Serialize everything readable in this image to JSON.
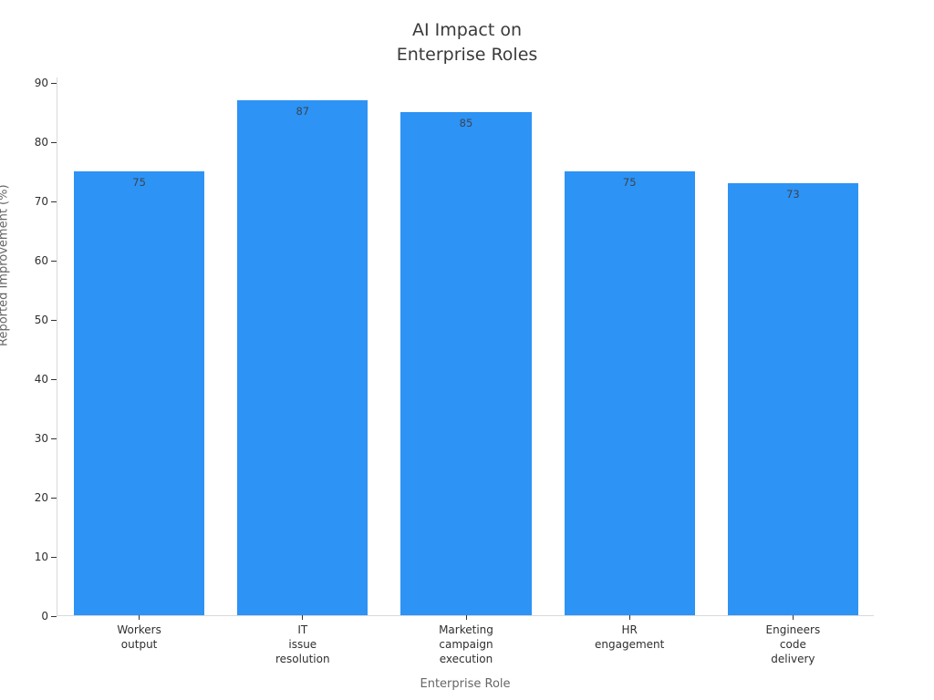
{
  "chart_data": {
    "type": "bar",
    "title": "AI Impact on\nEnterprise Roles",
    "xlabel": "Enterprise Role",
    "ylabel": "Reported Improvement (%)",
    "categories": [
      "Workers\noutput",
      "IT\nissue\nresolution",
      "Marketing\ncampaign\nexecution",
      "HR\nengagement",
      "Engineers\ncode\ndelivery"
    ],
    "values": [
      75,
      87,
      85,
      75,
      73
    ],
    "bar_value_labels": [
      "75",
      "87",
      "85",
      "75",
      "73"
    ],
    "yticks": [
      0,
      10,
      20,
      30,
      40,
      50,
      60,
      70,
      80,
      90
    ],
    "ylim": [
      0,
      91
    ],
    "bar_color": "#2d93f5",
    "bar_width_fraction": 0.8,
    "grid": false,
    "legend": false,
    "background_color": "#ffffff",
    "axis_line_color": "#d9d9d9",
    "tick_mark_color": "#333333",
    "tick_label_color": "#2f2f2f",
    "axis_title_color": "#666666",
    "title_color": "#3a3a3a"
  }
}
